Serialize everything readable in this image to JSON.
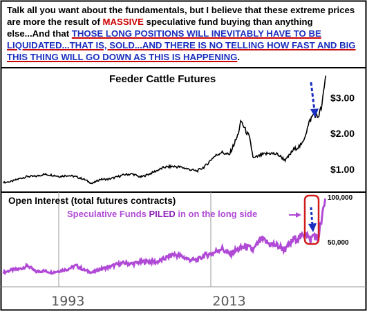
{
  "commentary": {
    "part1": "Talk all you want about the fundamentals, but I believe that these extreme prices are more the result of ",
    "part2": "MASSIVE",
    "part3": " speculative fund buying than anything else...And that ",
    "part4": "THOSE LONG POSITIONS WILL INEVITABLY HAVE TO BE LIQUIDATED...THAT IS, SOLD...AND THERE IS NO TELLING HOW FAST AND BIG THIS THING WILL GO DOWN AS THIS IS HAPPENING",
    "part5": "."
  },
  "colors": {
    "price_line": "#000000",
    "oi_line": "#b04ad6",
    "annotation_purple": "#b04ad6",
    "arrow_blue": "#1a2fbf",
    "highlight_red": "#d01c1c",
    "panel_border": "#000000"
  },
  "chart_data": [
    {
      "type": "line",
      "title": "Feeder Cattle Futures",
      "y_ticks": [
        "$1.00",
        "$2.00",
        "$3.00"
      ],
      "y_tick_values": [
        1.0,
        2.0,
        3.0
      ],
      "ylim": [
        0.4,
        3.8
      ],
      "xlim": [
        1985,
        2025.3
      ],
      "x": [
        1985,
        1986,
        1987,
        1988,
        1989,
        1990,
        1991,
        1992,
        1993,
        1994,
        1995,
        1996,
        1997,
        1998,
        1999,
        2000,
        2001,
        2002,
        2003,
        2004,
        2005,
        2006,
        2007,
        2008,
        2009,
        2010,
        2011,
        2012,
        2013,
        2014,
        2014.5,
        2015,
        2015.5,
        2016,
        2017,
        2018,
        2019,
        2020,
        2021,
        2022,
        2022.5,
        2023,
        2023.5,
        2024,
        2024.5,
        2025
      ],
      "values": [
        0.63,
        0.66,
        0.74,
        0.8,
        0.8,
        0.86,
        0.84,
        0.8,
        0.83,
        0.79,
        0.72,
        0.6,
        0.72,
        0.72,
        0.78,
        0.85,
        0.87,
        0.78,
        0.86,
        0.96,
        1.06,
        1.08,
        1.06,
        1.0,
        0.95,
        1.08,
        1.33,
        1.48,
        1.4,
        1.9,
        2.35,
        2.1,
        1.9,
        1.3,
        1.4,
        1.45,
        1.42,
        1.25,
        1.55,
        1.68,
        2.0,
        2.35,
        2.55,
        2.45,
        2.75,
        3.65
      ],
      "series": [
        {
          "name": ""
        }
      ]
    },
    {
      "type": "line",
      "title": "Open Interest (total futures contracts)",
      "y_ticks": [
        "50,000",
        "100,000"
      ],
      "y_tick_values": [
        50000,
        100000
      ],
      "ylim": [
        0,
        100000
      ],
      "xlim": [
        1985,
        2025.3
      ],
      "x_ticks": [
        "1993",
        "2013"
      ],
      "x_tick_values": [
        1993,
        2013
      ],
      "annotation": "Speculative Funds PILED in on the long side",
      "annotation_parts": {
        "before": "Speculative Funds ",
        "emph": "PILED",
        "after": " in on the long side"
      },
      "x": [
        1985,
        1986,
        1987,
        1988,
        1989,
        1990,
        1991,
        1992,
        1993,
        1994,
        1995,
        1996,
        1997,
        1998,
        1999,
        2000,
        2001,
        2002,
        2003,
        2004,
        2005,
        2006,
        2007,
        2008,
        2009,
        2010,
        2011,
        2012,
        2013,
        2014,
        2015,
        2016,
        2017,
        2018,
        2019,
        2020,
        2021,
        2022,
        2022.5,
        2023,
        2023.5,
        2024,
        2024.5,
        2025
      ],
      "values": [
        14000,
        17000,
        18000,
        22000,
        15000,
        16000,
        14000,
        16000,
        18000,
        22000,
        17000,
        14000,
        18000,
        20000,
        23000,
        25000,
        24000,
        26000,
        27000,
        26000,
        30000,
        35000,
        33000,
        29000,
        28000,
        34000,
        36000,
        42000,
        35000,
        40000,
        44000,
        40000,
        52000,
        47000,
        45000,
        40000,
        52000,
        55000,
        62000,
        50000,
        58000,
        52000,
        75000,
        100000
      ],
      "series": [
        {
          "name": ""
        }
      ]
    }
  ]
}
